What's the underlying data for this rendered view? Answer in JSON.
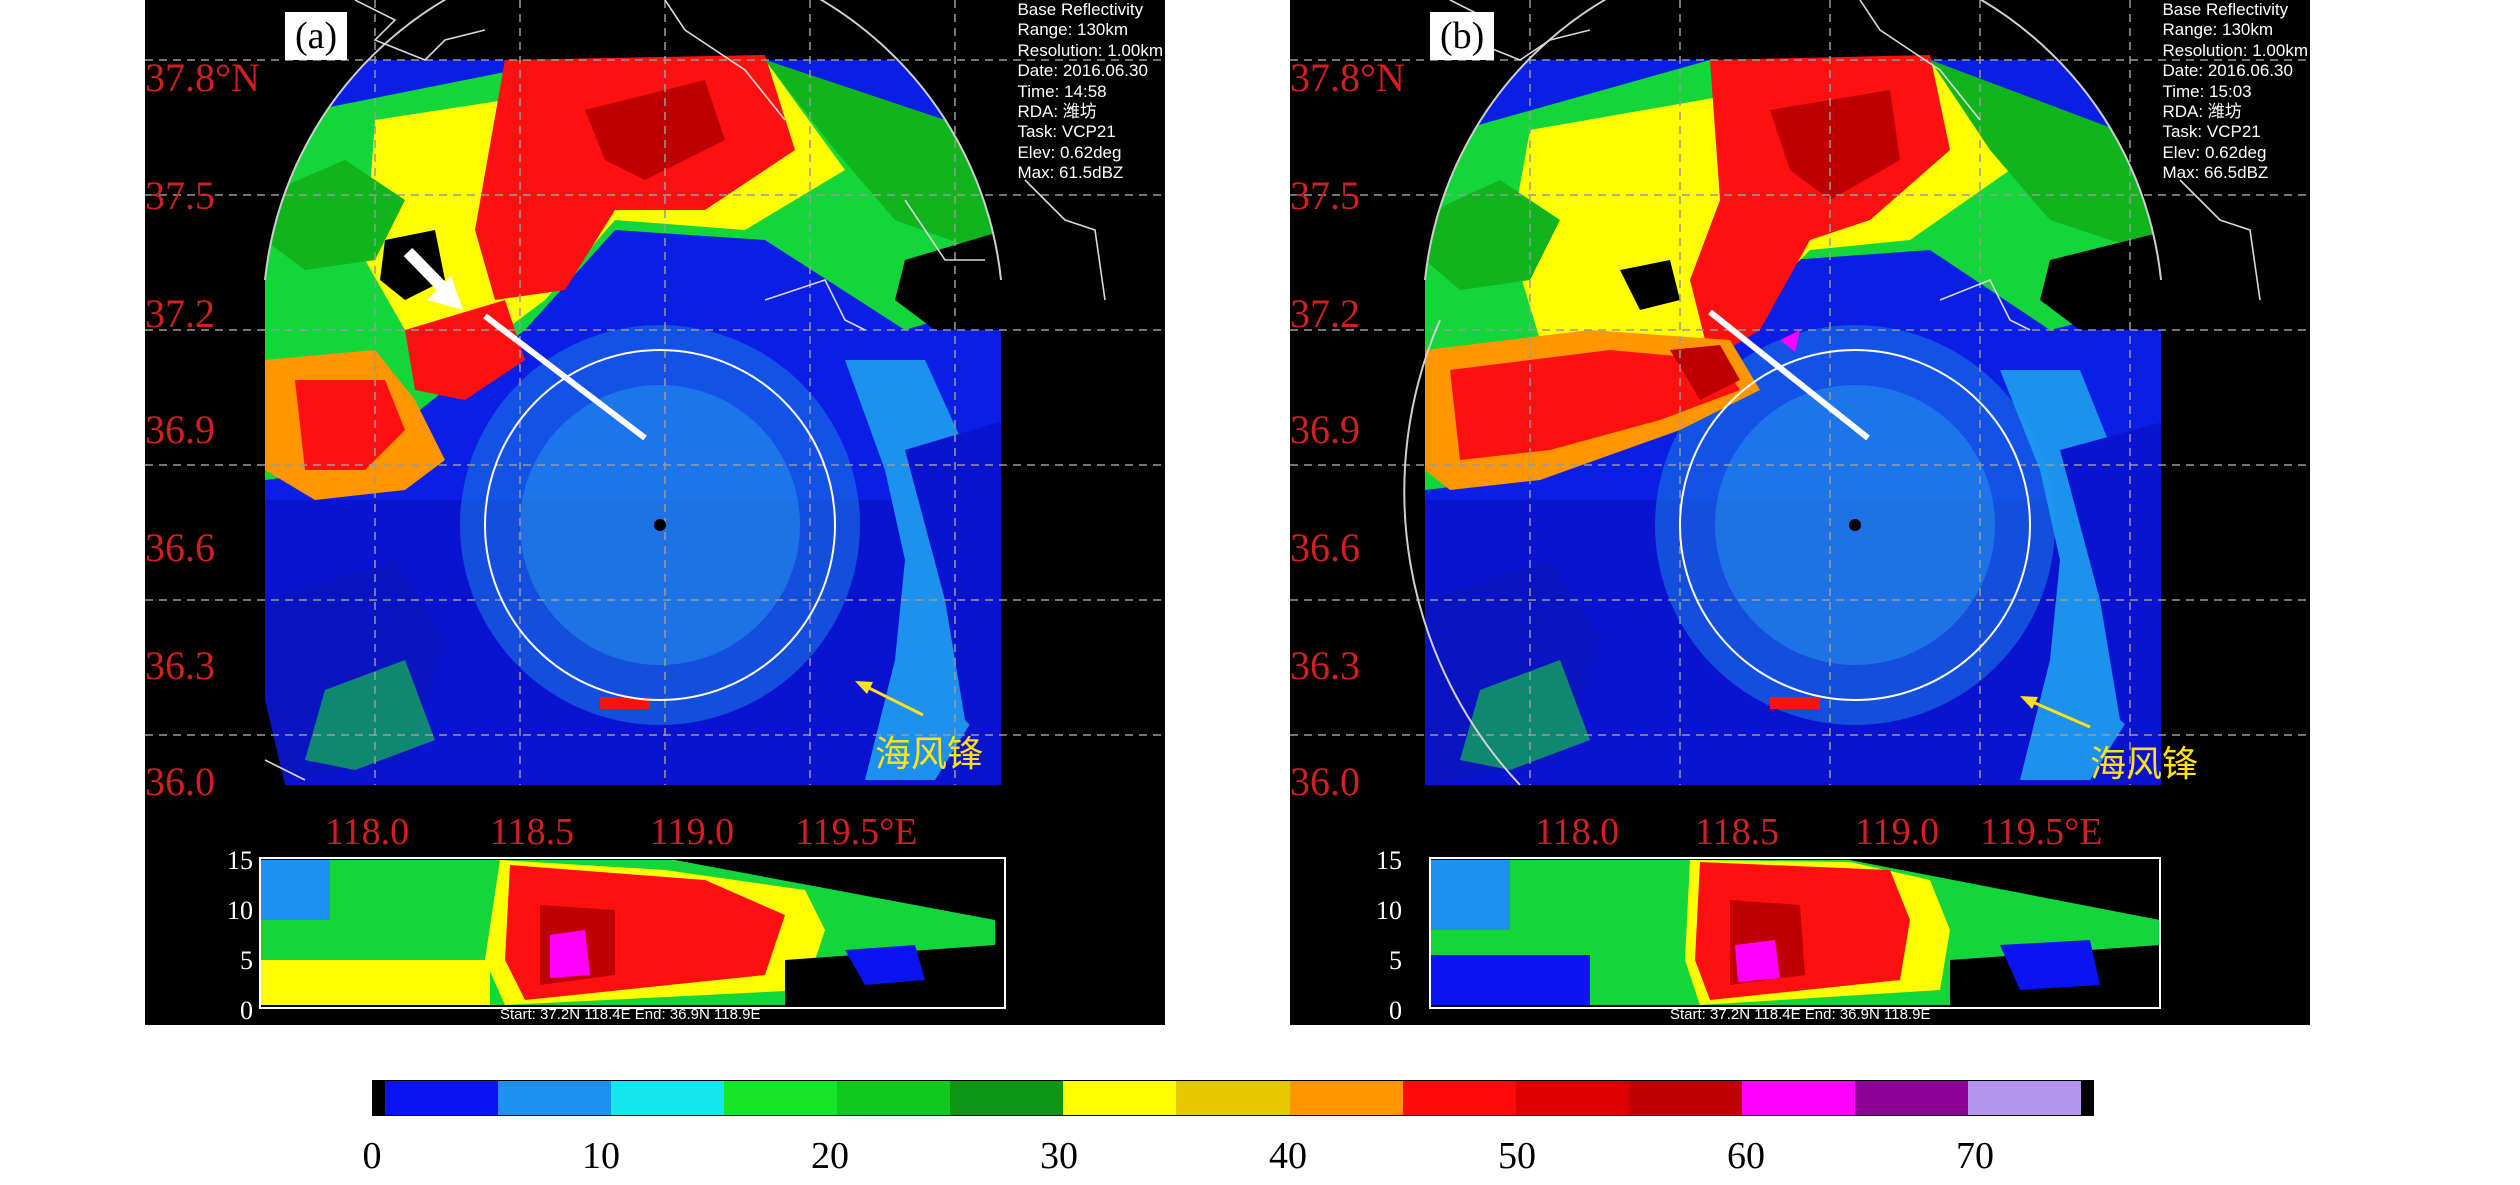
{
  "panels": [
    {
      "label": "(a)",
      "info": [
        "Base Reflectivity",
        "Range: 130km",
        "Resolution: 1.00km",
        "Date: 2016.06.30",
        "Time: 14:58",
        "RDA: 潍坊",
        "Task: VCP21",
        "Elev: 0.62deg",
        "Max: 61.5dBZ"
      ],
      "front_label": "海风锋",
      "xsec_caption": "Start: 37.2N 118.4E End: 36.9N 118.9E"
    },
    {
      "label": "(b)",
      "info": [
        "Base Reflectivity",
        "Range: 130km",
        "Resolution: 1.00km",
        "Date: 2016.06.30",
        "Time: 15:03",
        "RDA: 潍坊",
        "Task: VCP21",
        "Elev: 0.62deg",
        "Max: 66.5dBZ"
      ],
      "front_label": "海风锋",
      "xsec_caption": "Start: 37.2N 118.4E End: 36.9N 118.9E"
    }
  ],
  "latitude_labels": [
    "37.8°N",
    "37.5",
    "37.2",
    "36.9",
    "36.6",
    "36.3",
    "36.0"
  ],
  "longitude_labels": [
    "118.0",
    "118.5",
    "119.0",
    "119.5°E"
  ],
  "cross_section_y_ticks": [
    "15",
    "10",
    "5",
    "0"
  ],
  "colorbar": {
    "colors": [
      "#000000",
      "#0a14f0",
      "#1e90f0",
      "#16e6f0",
      "#16e628",
      "#10c81e",
      "#0c9614",
      "#ffff00",
      "#e6c800",
      "#ff9600",
      "#ff0a0a",
      "#dc0000",
      "#be0000",
      "#ff00ff",
      "#8c0096",
      "#b496f0",
      "#000000"
    ],
    "ticks": [
      "0",
      "10",
      "20",
      "30",
      "40",
      "50",
      "60",
      "70"
    ]
  },
  "colors": {
    "label_red": "#d21f1f",
    "front_yellow": "#ffe11a"
  }
}
